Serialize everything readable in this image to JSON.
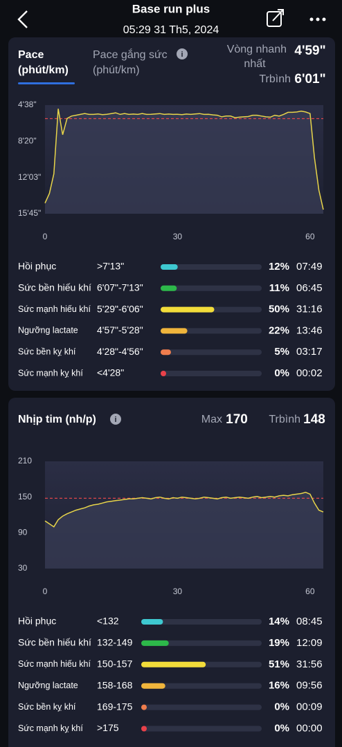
{
  "header": {
    "title": "Base run plus",
    "subtitle": "05:29 31 Th5, 2024"
  },
  "pace": {
    "tabs": [
      {
        "lines": [
          "Pace",
          "(phút/km)"
        ]
      },
      {
        "lines": [
          "Pace gắng sức",
          "(phút/km)"
        ]
      }
    ],
    "fastest": {
      "lines": [
        "Vòng nhanh",
        "nhất"
      ],
      "value_label": "4'59\""
    },
    "average": {
      "label": "Trbình",
      "value": 361,
      "value_label": "6'01\""
    },
    "chart": {
      "type": "line",
      "color": "#e8d54a",
      "threshold_color": "#e0464a",
      "x": [
        0,
        1,
        2,
        3,
        4,
        5,
        6,
        7,
        8,
        9,
        10,
        11,
        12,
        13,
        14,
        15,
        16,
        17,
        18,
        19,
        20,
        21,
        22,
        23,
        24,
        25,
        26,
        27,
        28,
        29,
        30,
        31,
        32,
        33,
        34,
        35,
        36,
        37,
        38,
        39,
        40,
        41,
        42,
        43,
        44,
        45,
        46,
        47,
        48,
        49,
        50,
        51,
        52,
        53,
        54,
        55,
        56,
        57,
        58,
        59,
        60,
        61,
        62,
        63
      ],
      "values": [
        880,
        820,
        700,
        300,
        460,
        360,
        345,
        340,
        335,
        330,
        335,
        335,
        332,
        336,
        334,
        330,
        325,
        335,
        330,
        335,
        333,
        335,
        330,
        335,
        334,
        332,
        330,
        335,
        333,
        335,
        334,
        336,
        333,
        335,
        332,
        330,
        335,
        334,
        338,
        340,
        350,
        345,
        345,
        355,
        352,
        350,
        348,
        340,
        340,
        345,
        350,
        352,
        340,
        345,
        335,
        322,
        322,
        320,
        315,
        320,
        330,
        600,
        800,
        920
      ],
      "xlim": [
        0,
        63
      ],
      "xticks": [
        0,
        30,
        60
      ],
      "ylim": [
        945,
        278
      ],
      "yticks": [
        {
          "value": 278,
          "label": "4'38\""
        },
        {
          "value": 500,
          "label": "8'20\""
        },
        {
          "value": 723,
          "label": "12'03\""
        },
        {
          "value": 945,
          "label": "15'45\""
        }
      ]
    },
    "zones": [
      {
        "name": "Hồi phục",
        "range": ">7'13\"",
        "color": "#3ec8d0",
        "percent": 12,
        "percent_label": "12%",
        "time": "07:49"
      },
      {
        "name": "Sức bền hiếu khí",
        "range": "6'07\"-7'13\"",
        "color": "#2db84a",
        "percent": 11,
        "percent_label": "11%",
        "time": "06:45"
      },
      {
        "name": "Sức mạnh hiếu khí",
        "range": "5'29\"-6'06\"",
        "color": "#f2dc3a",
        "percent": 50,
        "percent_label": "50%",
        "time": "31:16"
      },
      {
        "name": "Ngưỡng lactate",
        "range": "4'57\"-5'28\"",
        "color": "#f0b53c",
        "percent": 22,
        "percent_label": "22%",
        "time": "13:46"
      },
      {
        "name": "Sức bền kỵ khí",
        "range": "4'28\"-4'56\"",
        "color": "#ef7d4d",
        "percent": 5,
        "percent_label": "5%",
        "time": "03:17"
      },
      {
        "name": "Sức mạnh kỵ khí",
        "range": "<4'28\"",
        "color": "#e8414a",
        "percent": 0,
        "percent_label": "0%",
        "time": "00:02"
      }
    ]
  },
  "hr": {
    "title": "Nhịp tim (nh/p)",
    "max": {
      "label": "Max",
      "value": 170
    },
    "average": {
      "label": "Trbình",
      "value": 148
    },
    "chart": {
      "type": "line",
      "color": "#e8d54a",
      "threshold_color": "#e0464a",
      "x": [
        0,
        1,
        2,
        3,
        4,
        5,
        6,
        7,
        8,
        9,
        10,
        11,
        12,
        13,
        14,
        15,
        16,
        17,
        18,
        19,
        20,
        21,
        22,
        23,
        24,
        25,
        26,
        27,
        28,
        29,
        30,
        31,
        32,
        33,
        34,
        35,
        36,
        37,
        38,
        39,
        40,
        41,
        42,
        43,
        44,
        45,
        46,
        47,
        48,
        49,
        50,
        51,
        52,
        53,
        54,
        55,
        56,
        57,
        58,
        59,
        60,
        61,
        62,
        63
      ],
      "values": [
        110,
        105,
        100,
        112,
        118,
        122,
        125,
        128,
        130,
        132,
        135,
        137,
        138,
        140,
        142,
        143,
        144,
        145,
        146,
        147,
        147,
        148,
        149,
        148,
        147,
        149,
        150,
        148,
        147,
        149,
        148,
        150,
        149,
        148,
        147,
        148,
        150,
        149,
        148,
        147,
        149,
        150,
        148,
        149,
        150,
        149,
        148,
        150,
        151,
        149,
        150,
        151,
        150,
        152,
        153,
        152,
        154,
        155,
        156,
        158,
        155,
        140,
        128,
        125
      ],
      "xlim": [
        0,
        63
      ],
      "xticks": [
        0,
        30,
        60
      ],
      "ylim": [
        30,
        210
      ],
      "yticks": [
        30,
        90,
        150,
        210
      ]
    },
    "zones": [
      {
        "name": "Hồi phục",
        "range": "<132",
        "color": "#3ec8d0",
        "percent": 14,
        "percent_label": "14%",
        "time": "08:45"
      },
      {
        "name": "Sức bền hiếu khí",
        "range": "132-149",
        "color": "#2db84a",
        "percent": 19,
        "percent_label": "19%",
        "time": "12:09"
      },
      {
        "name": "Sức mạnh hiếu khí",
        "range": "150-157",
        "color": "#f2dc3a",
        "percent": 51,
        "percent_label": "51%",
        "time": "31:56"
      },
      {
        "name": "Ngưỡng lactate",
        "range": "158-168",
        "color": "#f0b53c",
        "percent": 16,
        "percent_label": "16%",
        "time": "09:56"
      },
      {
        "name": "Sức bền kỵ khí",
        "range": "169-175",
        "color": "#ef7d4d",
        "percent": 0,
        "percent_label": "0%",
        "time": "00:09"
      },
      {
        "name": "Sức mạnh kỵ khí",
        "range": ">175",
        "color": "#e8414a",
        "percent": 0,
        "percent_label": "0%",
        "time": "00:00"
      }
    ]
  }
}
